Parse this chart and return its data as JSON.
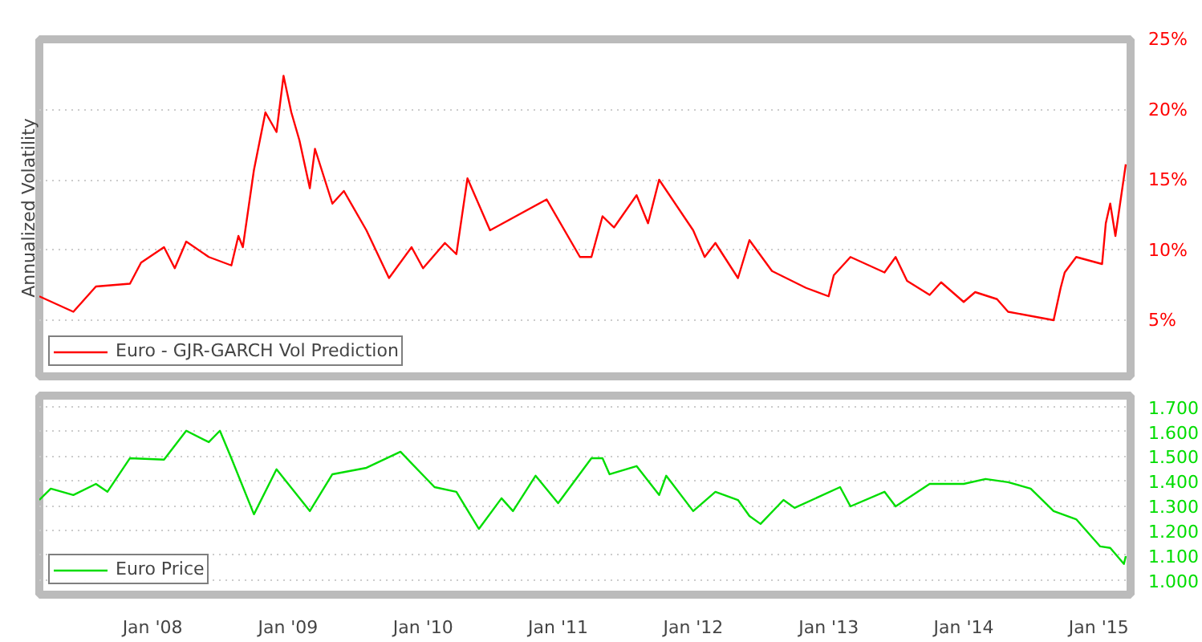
{
  "chart_data": [
    {
      "type": "line",
      "ylabel": "Annualized Volatility",
      "xlim": [
        "2007-03-01",
        "2015-03-28"
      ],
      "ylim": [
        1,
        25
      ],
      "yticks": [
        {
          "value": 5,
          "label": "5%"
        },
        {
          "value": 10,
          "label": "10%"
        },
        {
          "value": 15,
          "label": "15%"
        },
        {
          "value": 20,
          "label": "20%"
        },
        {
          "value": 25,
          "label": "25%"
        }
      ],
      "xticks": [
        {
          "value": "2008-01-01",
          "label": null
        },
        {
          "value": "2009-01-01",
          "label": null
        },
        {
          "value": "2010-01-01",
          "label": null
        },
        {
          "value": "2011-01-01",
          "label": null
        },
        {
          "value": "2012-01-01",
          "label": null
        },
        {
          "value": "2013-01-01",
          "label": null
        },
        {
          "value": "2014-01-01",
          "label": null
        },
        {
          "value": "2015-01-01",
          "label": null
        }
      ],
      "tick_labels": "y",
      "grid": true,
      "legend": "bottom left",
      "line_style": "solid",
      "series": [
        {
          "name": "Euro - GJR-GARCH Vol Prediction",
          "color": "#ff0000",
          "x": [
            "2007-03-01",
            "2007-06-01",
            "2007-08-01",
            "2007-11-01",
            "2007-12-01",
            "2008-02-01",
            "2008-03-01",
            "2008-04-01",
            "2008-06-01",
            "2008-08-01",
            "2008-08-20",
            "2008-09-01",
            "2008-10-01",
            "2008-11-01",
            "2008-12-01",
            "2008-12-20",
            "2009-01-10",
            "2009-02-01",
            "2009-03-01",
            "2009-03-15",
            "2009-05-01",
            "2009-06-01",
            "2009-08-01",
            "2009-10-01",
            "2009-12-01",
            "2010-01-01",
            "2010-03-01",
            "2010-04-01",
            "2010-05-01",
            "2010-07-01",
            "2010-12-01",
            "2011-03-01",
            "2011-04-01",
            "2011-05-01",
            "2011-06-01",
            "2011-08-01",
            "2011-09-01",
            "2011-10-01",
            "2012-01-01",
            "2012-02-01",
            "2012-03-01",
            "2012-05-01",
            "2012-06-01",
            "2012-08-01",
            "2012-11-01",
            "2013-01-01",
            "2013-01-15",
            "2013-03-01",
            "2013-06-01",
            "2013-07-01",
            "2013-08-01",
            "2013-10-01",
            "2013-11-01",
            "2014-01-01",
            "2014-02-01",
            "2014-04-01",
            "2014-05-01",
            "2014-09-01",
            "2014-09-20",
            "2014-10-01",
            "2014-11-01",
            "2015-01-10",
            "2015-01-20",
            "2015-02-01",
            "2015-02-15",
            "2015-03-15"
          ],
          "values": [
            6.7,
            5.6,
            7.4,
            7.6,
            9.1,
            10.2,
            8.7,
            10.6,
            9.5,
            8.9,
            11.0,
            10.2,
            15.7,
            19.8,
            18.4,
            22.4,
            19.8,
            17.8,
            14.4,
            17.2,
            13.3,
            14.2,
            11.4,
            8.0,
            10.2,
            8.7,
            10.5,
            9.7,
            15.1,
            11.4,
            13.6,
            9.5,
            9.5,
            12.4,
            11.6,
            13.9,
            11.9,
            15.0,
            11.4,
            9.5,
            10.5,
            8.0,
            10.7,
            8.5,
            7.3,
            6.7,
            8.2,
            9.5,
            8.4,
            9.5,
            7.8,
            6.8,
            7.7,
            6.3,
            7.0,
            6.5,
            5.6,
            5.0,
            7.3,
            8.4,
            9.5,
            9.0,
            11.9,
            13.3,
            11.0,
            16.1
          ]
        }
      ]
    },
    {
      "type": "line",
      "xlim": [
        "2007-03-01",
        "2015-03-28"
      ],
      "ylim": [
        0.94,
        1.745
      ],
      "yticks": [
        {
          "value": 1.0,
          "label": "1.000"
        },
        {
          "value": 1.1,
          "label": "1.100"
        },
        {
          "value": 1.2,
          "label": "1.200"
        },
        {
          "value": 1.3,
          "label": "1.300"
        },
        {
          "value": 1.4,
          "label": "1.400"
        },
        {
          "value": 1.5,
          "label": "1.500"
        },
        {
          "value": 1.6,
          "label": "1.600"
        },
        {
          "value": 1.7,
          "label": "1.700"
        }
      ],
      "xticks": [
        {
          "value": "2008-01-01",
          "label": "Jan '08"
        },
        {
          "value": "2009-01-01",
          "label": "Jan '09"
        },
        {
          "value": "2010-01-01",
          "label": "Jan '10"
        },
        {
          "value": "2011-01-01",
          "label": "Jan '11"
        },
        {
          "value": "2012-01-01",
          "label": "Jan '12"
        },
        {
          "value": "2013-01-01",
          "label": "Jan '13"
        },
        {
          "value": "2014-01-01",
          "label": "Jan '14"
        },
        {
          "value": "2015-01-01",
          "label": "Jan '15"
        }
      ],
      "grid": true,
      "legend": "bottom left",
      "line_style": "solid",
      "series": [
        {
          "name": "Euro Price",
          "color": "#00dd00",
          "x": [
            "2007-03-01",
            "2007-04-01",
            "2007-06-01",
            "2007-08-01",
            "2007-09-01",
            "2007-11-01",
            "2008-02-01",
            "2008-04-01",
            "2008-06-01",
            "2008-07-01",
            "2008-08-01",
            "2008-10-01",
            "2008-12-01",
            "2009-03-01",
            "2009-05-01",
            "2009-08-01",
            "2009-11-01",
            "2010-02-01",
            "2010-04-01",
            "2010-06-01",
            "2010-08-01",
            "2010-09-01",
            "2010-11-01",
            "2011-01-01",
            "2011-04-01",
            "2011-05-01",
            "2011-05-20",
            "2011-08-01",
            "2011-10-01",
            "2011-10-20",
            "2012-01-01",
            "2012-03-01",
            "2012-05-01",
            "2012-06-01",
            "2012-07-01",
            "2012-09-01",
            "2012-10-01",
            "2013-02-01",
            "2013-03-01",
            "2013-06-01",
            "2013-07-01",
            "2013-10-01",
            "2014-01-01",
            "2014-03-01",
            "2014-05-01",
            "2014-07-01",
            "2014-09-01",
            "2014-11-01",
            "2015-01-05",
            "2015-02-01",
            "2015-03-10",
            "2015-03-15"
          ],
          "values": [
            1.323,
            1.369,
            1.343,
            1.388,
            1.356,
            1.492,
            1.486,
            1.603,
            1.557,
            1.603,
            1.492,
            1.265,
            1.447,
            1.278,
            1.427,
            1.453,
            1.518,
            1.375,
            1.356,
            1.206,
            1.33,
            1.278,
            1.421,
            1.31,
            1.492,
            1.492,
            1.427,
            1.46,
            1.343,
            1.421,
            1.278,
            1.356,
            1.323,
            1.258,
            1.226,
            1.323,
            1.291,
            1.375,
            1.297,
            1.356,
            1.297,
            1.388,
            1.388,
            1.408,
            1.395,
            1.369,
            1.278,
            1.245,
            1.135,
            1.129,
            1.064,
            1.096
          ]
        }
      ]
    }
  ]
}
